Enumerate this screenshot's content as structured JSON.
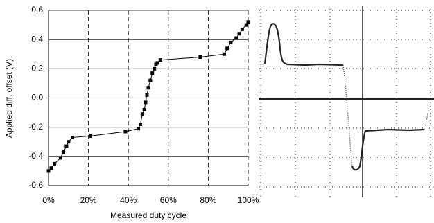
{
  "chart_data": {
    "type": "line",
    "x_label": "Measured duty cycle",
    "y_label": "Applied diff. offset (V)",
    "x": [
      0,
      1.4,
      3,
      6,
      7.5,
      9,
      10,
      12,
      21,
      38.5,
      45,
      46,
      47,
      48,
      48.6,
      49.3,
      50,
      51,
      52,
      53,
      53.8,
      54.5,
      56,
      76,
      88,
      89.5,
      91.3,
      94,
      95.5,
      97,
      99,
      100
    ],
    "values": [
      -0.5,
      -0.48,
      -0.45,
      -0.41,
      -0.37,
      -0.33,
      -0.3,
      -0.27,
      -0.26,
      -0.23,
      -0.21,
      -0.18,
      -0.11,
      -0.08,
      -0.03,
      0.02,
      0.07,
      0.12,
      0.17,
      0.2,
      0.23,
      0.24,
      0.26,
      0.28,
      0.3,
      0.34,
      0.38,
      0.41,
      0.44,
      0.47,
      0.5,
      0.52
    ],
    "color": "#000000",
    "marker": "square",
    "xlim": [
      0,
      100
    ],
    "xticks": [
      {
        "value": 0,
        "label": "0%"
      },
      {
        "value": 20,
        "label": "20%"
      },
      {
        "value": 40,
        "label": "40%"
      },
      {
        "value": 60,
        "label": "60%"
      },
      {
        "value": 80,
        "label": "80%"
      },
      {
        "value": 100,
        "label": "100%"
      }
    ],
    "ylim": [
      -0.6,
      0.6
    ],
    "yticks": [
      -0.6,
      -0.4,
      -0.2,
      {
        "value": 0,
        "label": "0.0"
      },
      0.2,
      0.4,
      0.6
    ],
    "x_grid": "dashed",
    "y_grid": "solid"
  }
}
